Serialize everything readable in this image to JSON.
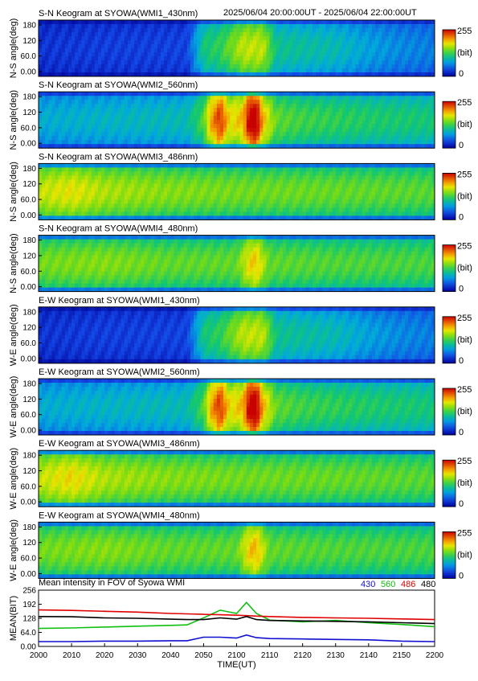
{
  "header": {
    "date_range": "2025/06/04 20:00:00UT - 2025/06/04 22:00:00UT"
  },
  "colors": {
    "s430": "#1010d0",
    "s560": "#10c010",
    "s486": "#e00000",
    "s480": "#000000"
  },
  "panels": [
    {
      "title": "S-N Keogram at SYOWA(WMI1_430nm)",
      "ylabel": "N-S angle(deg)",
      "cbar_max": "255",
      "cbar_unit": "(bit)",
      "cbar_min": "0"
    },
    {
      "title": "S-N Keogram at SYOWA(WMI2_560nm)",
      "ylabel": "N-S angle(deg)",
      "cbar_max": "255",
      "cbar_unit": "(bit)",
      "cbar_min": "0"
    },
    {
      "title": "S-N Keogram at SYOWA(WMI3_486nm)",
      "ylabel": "N-S angle(deg)",
      "cbar_max": "255",
      "cbar_unit": "(bit)",
      "cbar_min": "0"
    },
    {
      "title": "S-N Keogram at SYOWA(WMI4_480nm)",
      "ylabel": "N-S angle(deg)",
      "cbar_max": "255",
      "cbar_unit": "(bit)",
      "cbar_min": "0"
    },
    {
      "title": "E-W Keogram at SYOWA(WMI1_430nm)",
      "ylabel": "W-E angle(deg)",
      "cbar_max": "255",
      "cbar_unit": "(bit)",
      "cbar_min": "0"
    },
    {
      "title": "E-W Keogram at SYOWA(WMI2_560nm)",
      "ylabel": "W-E angle(deg)",
      "cbar_max": "255",
      "cbar_unit": "(bit)",
      "cbar_min": "0"
    },
    {
      "title": "E-W Keogram at SYOWA(WMI3_486nm)",
      "ylabel": "W-E angle(deg)",
      "cbar_max": "255",
      "cbar_unit": "(bit)",
      "cbar_min": "0"
    },
    {
      "title": "E-W Keogram at SYOWA(WMI4_480nm)",
      "ylabel": "W-E angle(deg)",
      "cbar_max": "255",
      "cbar_unit": "(bit)",
      "cbar_min": "0"
    }
  ],
  "y_ticks": [
    "180",
    "120",
    "60.0",
    "0.00"
  ],
  "mean_panel": {
    "title": "Mean intensity in FOV of Syowa WMI",
    "ylabel": "MEAN(BIT)",
    "y_ticks": [
      "256",
      "192",
      "128",
      "64.0",
      "0.00"
    ],
    "legend": [
      "430",
      "560",
      "486",
      "480"
    ]
  },
  "x_ticks": [
    "2000",
    "2010",
    "2020",
    "2030",
    "2040",
    "2050",
    "2100",
    "2110",
    "2120",
    "2130",
    "2140",
    "2150",
    "2200"
  ],
  "xlabel": "TIME(UT)",
  "chart_data": [
    {
      "type": "heatmap",
      "title": "S-N Keogram at SYOWA(WMI1_430nm)",
      "ylabel": "N-S angle(deg)",
      "ylim": [
        0,
        180
      ],
      "clim": [
        0,
        255
      ],
      "x_range": [
        "2000",
        "2200"
      ],
      "profile_minutes": [
        0,
        20,
        45,
        50,
        55,
        62,
        68,
        72,
        80,
        90,
        100,
        110,
        120
      ],
      "profile_values": [
        25,
        30,
        32,
        100,
        110,
        150,
        150,
        95,
        90,
        85,
        70,
        60,
        55
      ]
    },
    {
      "type": "heatmap",
      "title": "S-N Keogram at SYOWA(WMI2_560nm)",
      "ylabel": "N-S angle(deg)",
      "ylim": [
        0,
        180
      ],
      "clim": [
        0,
        255
      ],
      "x_range": [
        "2000",
        "2200"
      ],
      "profile_minutes": [
        0,
        20,
        45,
        50,
        52,
        55,
        58,
        62,
        64,
        66,
        68,
        72,
        80,
        100,
        120
      ],
      "profile_values": [
        75,
        80,
        85,
        120,
        175,
        215,
        160,
        175,
        240,
        240,
        175,
        125,
        115,
        105,
        100
      ]
    },
    {
      "type": "heatmap",
      "title": "S-N Keogram at SYOWA(WMI3_486nm)",
      "ylabel": "N-S angle(deg)",
      "ylim": [
        0,
        180
      ],
      "clim": [
        0,
        255
      ],
      "x_range": [
        "2000",
        "2200"
      ],
      "profile_minutes": [
        0,
        10,
        20,
        40,
        60,
        80,
        100,
        120
      ],
      "profile_values": [
        150,
        160,
        145,
        135,
        130,
        128,
        125,
        122
      ]
    },
    {
      "type": "heatmap",
      "title": "S-N Keogram at SYOWA(WMI4_480nm)",
      "ylabel": "N-S angle(deg)",
      "ylim": [
        0,
        180
      ],
      "clim": [
        0,
        255
      ],
      "x_range": [
        "2000",
        "2200"
      ],
      "profile_minutes": [
        0,
        20,
        40,
        60,
        64,
        66,
        70,
        90,
        120
      ],
      "profile_values": [
        130,
        135,
        125,
        125,
        165,
        170,
        125,
        120,
        118
      ]
    },
    {
      "type": "heatmap",
      "title": "E-W Keogram at SYOWA(WMI1_430nm)",
      "ylabel": "W-E angle(deg)",
      "ylim": [
        0,
        180
      ],
      "clim": [
        0,
        255
      ],
      "x_range": [
        "2000",
        "2200"
      ],
      "profile_minutes": [
        0,
        20,
        45,
        50,
        55,
        62,
        68,
        72,
        80,
        90,
        100,
        110,
        120
      ],
      "profile_values": [
        25,
        30,
        32,
        100,
        110,
        150,
        150,
        95,
        90,
        85,
        70,
        60,
        55
      ]
    },
    {
      "type": "heatmap",
      "title": "E-W Keogram at SYOWA(WMI2_560nm)",
      "ylabel": "W-E angle(deg)",
      "ylim": [
        0,
        180
      ],
      "clim": [
        0,
        255
      ],
      "x_range": [
        "2000",
        "2200"
      ],
      "profile_minutes": [
        0,
        20,
        45,
        50,
        52,
        55,
        58,
        62,
        64,
        66,
        68,
        72,
        80,
        100,
        120
      ],
      "profile_values": [
        75,
        80,
        85,
        120,
        175,
        215,
        160,
        175,
        240,
        240,
        175,
        125,
        115,
        105,
        100
      ]
    },
    {
      "type": "heatmap",
      "title": "E-W Keogram at SYOWA(WMI3_486nm)",
      "ylabel": "W-E angle(deg)",
      "ylim": [
        0,
        180
      ],
      "clim": [
        0,
        255
      ],
      "x_range": [
        "2000",
        "2200"
      ],
      "profile_minutes": [
        0,
        10,
        20,
        40,
        60,
        80,
        100,
        120
      ],
      "profile_values": [
        150,
        165,
        145,
        135,
        130,
        128,
        125,
        122
      ]
    },
    {
      "type": "heatmap",
      "title": "E-W Keogram at SYOWA(WMI4_480nm)",
      "ylabel": "W-E angle(deg)",
      "ylim": [
        0,
        180
      ],
      "clim": [
        0,
        255
      ],
      "x_range": [
        "2000",
        "2200"
      ],
      "profile_minutes": [
        0,
        20,
        40,
        60,
        64,
        66,
        70,
        90,
        120
      ],
      "profile_values": [
        130,
        135,
        125,
        125,
        170,
        175,
        125,
        120,
        118
      ]
    },
    {
      "type": "line",
      "title": "Mean intensity in FOV of Syowa WMI",
      "xlabel": "TIME(UT)",
      "ylabel": "MEAN(BIT)",
      "ylim": [
        0,
        256
      ],
      "x_minutes": [
        0,
        10,
        20,
        30,
        40,
        45,
        50,
        55,
        60,
        63,
        66,
        70,
        80,
        90,
        100,
        110,
        120
      ],
      "series": [
        {
          "name": "430",
          "color": "#1010d0",
          "values": [
            22,
            22,
            24,
            24,
            26,
            26,
            42,
            42,
            38,
            52,
            40,
            36,
            34,
            32,
            30,
            24,
            22
          ]
        },
        {
          "name": "560",
          "color": "#10c010",
          "values": [
            82,
            84,
            88,
            92,
            96,
            98,
            130,
            165,
            150,
            200,
            150,
            120,
            112,
            118,
            108,
            100,
            90
          ]
        },
        {
          "name": "486",
          "color": "#e00000",
          "values": [
            166,
            164,
            160,
            156,
            150,
            148,
            146,
            144,
            142,
            140,
            138,
            136,
            132,
            130,
            128,
            125,
            122
          ]
        },
        {
          "name": "480",
          "color": "#000000",
          "values": [
            136,
            135,
            130,
            128,
            124,
            122,
            122,
            130,
            124,
            136,
            122,
            118,
            116,
            114,
            112,
            108,
            104
          ]
        }
      ]
    }
  ]
}
